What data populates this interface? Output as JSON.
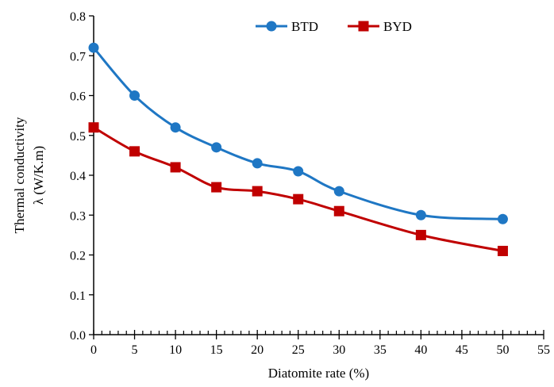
{
  "chart_data": {
    "type": "line",
    "xlabel": "Diatomite  rate (%)",
    "ylabel_line1": "Thermal  conductivity",
    "ylabel_line2": "λ (W/K.m)",
    "xlim": [
      0,
      55
    ],
    "ylim": [
      0,
      0.8
    ],
    "xticks": [
      0,
      5,
      10,
      15,
      20,
      25,
      30,
      35,
      40,
      45,
      50,
      55
    ],
    "yticks": [
      0.0,
      0.1,
      0.2,
      0.3,
      0.4,
      0.5,
      0.6,
      0.7,
      0.8
    ],
    "x_minor_step": 1,
    "grid": false,
    "legend_position": "top-right",
    "series": [
      {
        "name": "BTD",
        "color": "#1f77c4",
        "marker": "circle",
        "x": [
          0,
          5,
          10,
          15,
          20,
          25,
          30,
          40,
          50
        ],
        "y": [
          0.72,
          0.6,
          0.52,
          0.47,
          0.43,
          0.41,
          0.36,
          0.3,
          0.29
        ]
      },
      {
        "name": "BYD",
        "color": "#c00000",
        "marker": "square",
        "x": [
          0,
          5,
          10,
          15,
          20,
          25,
          30,
          40,
          50
        ],
        "y": [
          0.52,
          0.46,
          0.42,
          0.37,
          0.36,
          0.34,
          0.31,
          0.25,
          0.21
        ]
      }
    ]
  }
}
